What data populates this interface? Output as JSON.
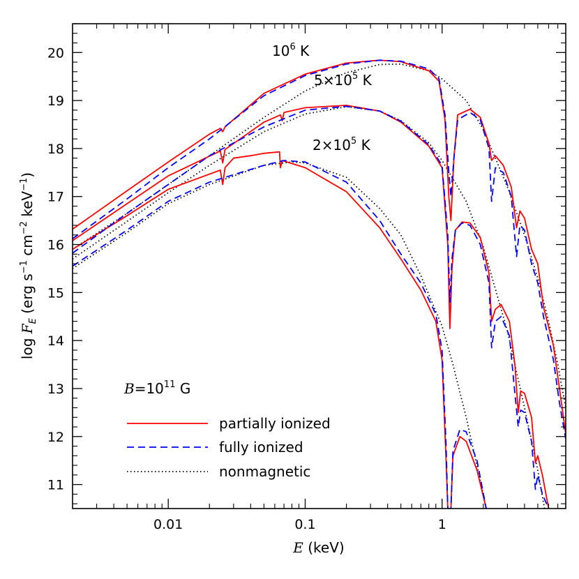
{
  "chart_data": {
    "type": "line",
    "xlabel": "E (keV)",
    "ylabel": "log F_E (erg s^-1 cm^-2 keV^-1)",
    "xscale": "log",
    "xlim": [
      0.002,
      8.0
    ],
    "ylim": [
      10.5,
      20.6
    ],
    "x_ticks": [
      0.01,
      0.1,
      1
    ],
    "x_tick_labels": [
      "0.01",
      "0.1",
      "1"
    ],
    "y_ticks": [
      11,
      12,
      13,
      14,
      15,
      16,
      17,
      18,
      19,
      20
    ],
    "y_tick_labels": [
      "11",
      "12",
      "13",
      "14",
      "15",
      "16",
      "17",
      "18",
      "19",
      "20"
    ],
    "annotations": [
      {
        "text": "10^6 K",
        "temperature_K": 1000000
      },
      {
        "text": "5×10^5 K",
        "temperature_K": 500000
      },
      {
        "text": "2×10^5 K",
        "temperature_K": 200000
      },
      {
        "text": "B=10^11 G"
      }
    ],
    "legend": {
      "position": "bottom-left",
      "entries": [
        {
          "label": "partially ionized",
          "color": "#ff0000",
          "style": "solid"
        },
        {
          "label": "fully ionized",
          "color": "#0000ff",
          "style": "dashed"
        },
        {
          "label": "nonmagnetic",
          "color": "#000000",
          "style": "dotted"
        }
      ]
    },
    "series": [
      {
        "temperature": "10^6 K",
        "model": "partially ionized",
        "color": "#ff0000",
        "style": "solid",
        "points": [
          [
            0.002,
            16.32
          ],
          [
            0.005,
            17.12
          ],
          [
            0.01,
            17.72
          ],
          [
            0.02,
            18.3
          ],
          [
            0.024,
            18.42
          ],
          [
            0.025,
            18.35
          ],
          [
            0.026,
            18.45
          ],
          [
            0.05,
            19.15
          ],
          [
            0.1,
            19.55
          ],
          [
            0.2,
            19.78
          ],
          [
            0.35,
            19.84
          ],
          [
            0.5,
            19.81
          ],
          [
            0.8,
            19.62
          ],
          [
            0.95,
            19.4
          ],
          [
            1.05,
            18.6
          ],
          [
            1.12,
            17.0
          ],
          [
            1.16,
            16.5
          ],
          [
            1.22,
            17.8
          ],
          [
            1.3,
            18.7
          ],
          [
            1.6,
            18.82
          ],
          [
            1.9,
            18.65
          ],
          [
            2.2,
            18.1
          ],
          [
            2.3,
            17.75
          ],
          [
            2.45,
            17.85
          ],
          [
            2.8,
            17.65
          ],
          [
            3.2,
            17.2
          ],
          [
            3.5,
            16.35
          ],
          [
            3.7,
            16.7
          ],
          [
            4.0,
            16.55
          ],
          [
            4.5,
            15.9
          ],
          [
            5.0,
            15.6
          ],
          [
            5.5,
            14.7
          ],
          [
            6.5,
            13.9
          ],
          [
            7.2,
            13.0
          ],
          [
            8.0,
            12.05
          ]
        ]
      },
      {
        "temperature": "10^6 K",
        "model": "fully ionized",
        "color": "#0000ff",
        "style": "dashed",
        "points": [
          [
            0.002,
            16.12
          ],
          [
            0.005,
            16.95
          ],
          [
            0.01,
            17.6
          ],
          [
            0.02,
            18.2
          ],
          [
            0.05,
            19.1
          ],
          [
            0.1,
            19.52
          ],
          [
            0.2,
            19.76
          ],
          [
            0.35,
            19.84
          ],
          [
            0.5,
            19.82
          ],
          [
            0.8,
            19.66
          ],
          [
            0.95,
            19.45
          ],
          [
            1.05,
            18.7
          ],
          [
            1.12,
            17.5
          ],
          [
            1.16,
            17.0
          ],
          [
            1.22,
            17.8
          ],
          [
            1.3,
            18.6
          ],
          [
            1.6,
            18.75
          ],
          [
            1.9,
            18.6
          ],
          [
            2.2,
            18.0
          ],
          [
            2.3,
            16.9
          ],
          [
            2.45,
            17.6
          ],
          [
            2.8,
            17.5
          ],
          [
            3.2,
            17.0
          ],
          [
            3.5,
            15.75
          ],
          [
            3.7,
            16.4
          ],
          [
            4.0,
            16.3
          ],
          [
            4.5,
            15.6
          ],
          [
            5.0,
            15.2
          ],
          [
            5.5,
            14.5
          ],
          [
            6.5,
            13.6
          ],
          [
            7.2,
            12.7
          ],
          [
            8.0,
            11.95
          ]
        ]
      },
      {
        "temperature": "10^6 K",
        "model": "nonmagnetic",
        "color": "#000000",
        "style": "dotted",
        "points": [
          [
            0.002,
            15.9
          ],
          [
            0.005,
            16.65
          ],
          [
            0.01,
            17.25
          ],
          [
            0.02,
            17.85
          ],
          [
            0.05,
            18.65
          ],
          [
            0.1,
            19.2
          ],
          [
            0.2,
            19.58
          ],
          [
            0.35,
            19.75
          ],
          [
            0.5,
            19.76
          ],
          [
            0.8,
            19.62
          ],
          [
            1.0,
            19.45
          ],
          [
            1.5,
            19.0
          ],
          [
            2.0,
            18.4
          ],
          [
            3.0,
            17.2
          ],
          [
            4.0,
            16.2
          ],
          [
            5.0,
            15.3
          ],
          [
            6.0,
            14.4
          ],
          [
            7.0,
            13.5
          ],
          [
            8.0,
            12.6
          ]
        ]
      },
      {
        "temperature": "5×10^5 K",
        "model": "partially ionized",
        "color": "#ff0000",
        "style": "solid",
        "points": [
          [
            0.002,
            16.08
          ],
          [
            0.005,
            16.85
          ],
          [
            0.01,
            17.43
          ],
          [
            0.024,
            17.95
          ],
          [
            0.025,
            17.7
          ],
          [
            0.026,
            17.98
          ],
          [
            0.05,
            18.55
          ],
          [
            0.066,
            18.7
          ],
          [
            0.068,
            18.58
          ],
          [
            0.07,
            18.75
          ],
          [
            0.1,
            18.85
          ],
          [
            0.2,
            18.9
          ],
          [
            0.35,
            18.78
          ],
          [
            0.5,
            18.55
          ],
          [
            0.8,
            18.05
          ],
          [
            1.0,
            17.6
          ],
          [
            1.1,
            16.0
          ],
          [
            1.14,
            14.25
          ],
          [
            1.18,
            15.5
          ],
          [
            1.25,
            16.3
          ],
          [
            1.4,
            16.47
          ],
          [
            1.6,
            16.45
          ],
          [
            1.9,
            16.15
          ],
          [
            2.2,
            15.4
          ],
          [
            2.3,
            14.4
          ],
          [
            2.45,
            14.65
          ],
          [
            2.7,
            14.75
          ],
          [
            3.1,
            14.4
          ],
          [
            3.4,
            13.5
          ],
          [
            3.6,
            12.5
          ],
          [
            3.75,
            12.95
          ],
          [
            4.0,
            12.9
          ],
          [
            4.5,
            12.4
          ],
          [
            4.8,
            11.45
          ],
          [
            5.0,
            11.6
          ],
          [
            5.4,
            11.2
          ],
          [
            6.0,
            10.5
          ]
        ]
      },
      {
        "temperature": "5×10^5 K",
        "model": "fully ionized",
        "color": "#0000ff",
        "style": "dashed",
        "points": [
          [
            0.002,
            15.82
          ],
          [
            0.005,
            16.65
          ],
          [
            0.01,
            17.25
          ],
          [
            0.02,
            17.85
          ],
          [
            0.05,
            18.45
          ],
          [
            0.1,
            18.8
          ],
          [
            0.2,
            18.88
          ],
          [
            0.35,
            18.78
          ],
          [
            0.5,
            18.57
          ],
          [
            0.8,
            18.08
          ],
          [
            1.0,
            17.65
          ],
          [
            1.1,
            16.2
          ],
          [
            1.14,
            14.8
          ],
          [
            1.18,
            15.7
          ],
          [
            1.25,
            16.3
          ],
          [
            1.4,
            16.45
          ],
          [
            1.6,
            16.4
          ],
          [
            1.9,
            16.0
          ],
          [
            2.2,
            15.2
          ],
          [
            2.3,
            13.85
          ],
          [
            2.45,
            14.4
          ],
          [
            2.7,
            14.5
          ],
          [
            3.1,
            14.1
          ],
          [
            3.4,
            12.9
          ],
          [
            3.6,
            12.2
          ],
          [
            3.75,
            12.55
          ],
          [
            4.0,
            12.5
          ],
          [
            4.5,
            11.9
          ],
          [
            4.8,
            10.9
          ],
          [
            5.0,
            11.2
          ],
          [
            5.4,
            10.8
          ],
          [
            6.0,
            10.5
          ]
        ]
      },
      {
        "temperature": "5×10^5 K",
        "model": "nonmagnetic",
        "color": "#000000",
        "style": "dotted",
        "points": [
          [
            0.002,
            15.7
          ],
          [
            0.005,
            16.48
          ],
          [
            0.01,
            17.08
          ],
          [
            0.02,
            17.65
          ],
          [
            0.05,
            18.35
          ],
          [
            0.1,
            18.72
          ],
          [
            0.2,
            18.87
          ],
          [
            0.35,
            18.78
          ],
          [
            0.5,
            18.58
          ],
          [
            0.8,
            18.12
          ],
          [
            1.0,
            17.75
          ],
          [
            1.5,
            16.9
          ],
          [
            2.0,
            15.95
          ],
          [
            3.0,
            14.2
          ],
          [
            4.0,
            12.6
          ],
          [
            5.0,
            11.3
          ],
          [
            5.6,
            10.5
          ]
        ]
      },
      {
        "temperature": "2×10^5 K",
        "model": "partially ionized",
        "color": "#ff0000",
        "style": "solid",
        "points": [
          [
            0.002,
            15.9
          ],
          [
            0.005,
            16.6
          ],
          [
            0.01,
            17.15
          ],
          [
            0.024,
            17.55
          ],
          [
            0.025,
            17.25
          ],
          [
            0.026,
            17.6
          ],
          [
            0.03,
            17.8
          ],
          [
            0.04,
            17.85
          ],
          [
            0.05,
            17.9
          ],
          [
            0.065,
            17.93
          ],
          [
            0.066,
            17.6
          ],
          [
            0.068,
            17.75
          ],
          [
            0.1,
            17.6
          ],
          [
            0.2,
            17.1
          ],
          [
            0.35,
            16.35
          ],
          [
            0.5,
            15.7
          ],
          [
            0.7,
            15.05
          ],
          [
            0.9,
            14.4
          ],
          [
            1.0,
            13.6
          ],
          [
            1.07,
            11.5
          ],
          [
            1.1,
            10.5
          ],
          [
            1.16,
            10.5
          ],
          [
            1.2,
            11.6
          ],
          [
            1.35,
            12.0
          ],
          [
            1.5,
            11.9
          ],
          [
            1.8,
            11.3
          ],
          [
            2.1,
            10.5
          ]
        ]
      },
      {
        "temperature": "2×10^5 K",
        "model": "fully ionized",
        "color": "#0000ff",
        "style": "dashed",
        "points": [
          [
            0.002,
            15.55
          ],
          [
            0.005,
            16.3
          ],
          [
            0.01,
            16.9
          ],
          [
            0.02,
            17.3
          ],
          [
            0.05,
            17.65
          ],
          [
            0.07,
            17.75
          ],
          [
            0.1,
            17.72
          ],
          [
            0.2,
            17.3
          ],
          [
            0.35,
            16.5
          ],
          [
            0.5,
            15.8
          ],
          [
            0.7,
            15.2
          ],
          [
            0.9,
            14.55
          ],
          [
            1.0,
            13.8
          ],
          [
            1.07,
            11.8
          ],
          [
            1.1,
            10.5
          ],
          [
            1.16,
            10.5
          ],
          [
            1.2,
            11.7
          ],
          [
            1.35,
            12.15
          ],
          [
            1.5,
            12.1
          ],
          [
            1.8,
            11.5
          ],
          [
            2.1,
            10.5
          ]
        ]
      },
      {
        "temperature": "2×10^5 K",
        "model": "nonmagnetic",
        "color": "#000000",
        "style": "dotted",
        "points": [
          [
            0.002,
            15.5
          ],
          [
            0.005,
            16.25
          ],
          [
            0.01,
            16.85
          ],
          [
            0.02,
            17.25
          ],
          [
            0.05,
            17.65
          ],
          [
            0.08,
            17.72
          ],
          [
            0.1,
            17.7
          ],
          [
            0.2,
            17.4
          ],
          [
            0.35,
            16.75
          ],
          [
            0.5,
            16.2
          ],
          [
            0.7,
            15.35
          ],
          [
            1.0,
            14.3
          ],
          [
            1.2,
            13.5
          ],
          [
            1.5,
            12.4
          ],
          [
            2.0,
            10.8
          ],
          [
            2.1,
            10.5
          ]
        ]
      }
    ]
  }
}
